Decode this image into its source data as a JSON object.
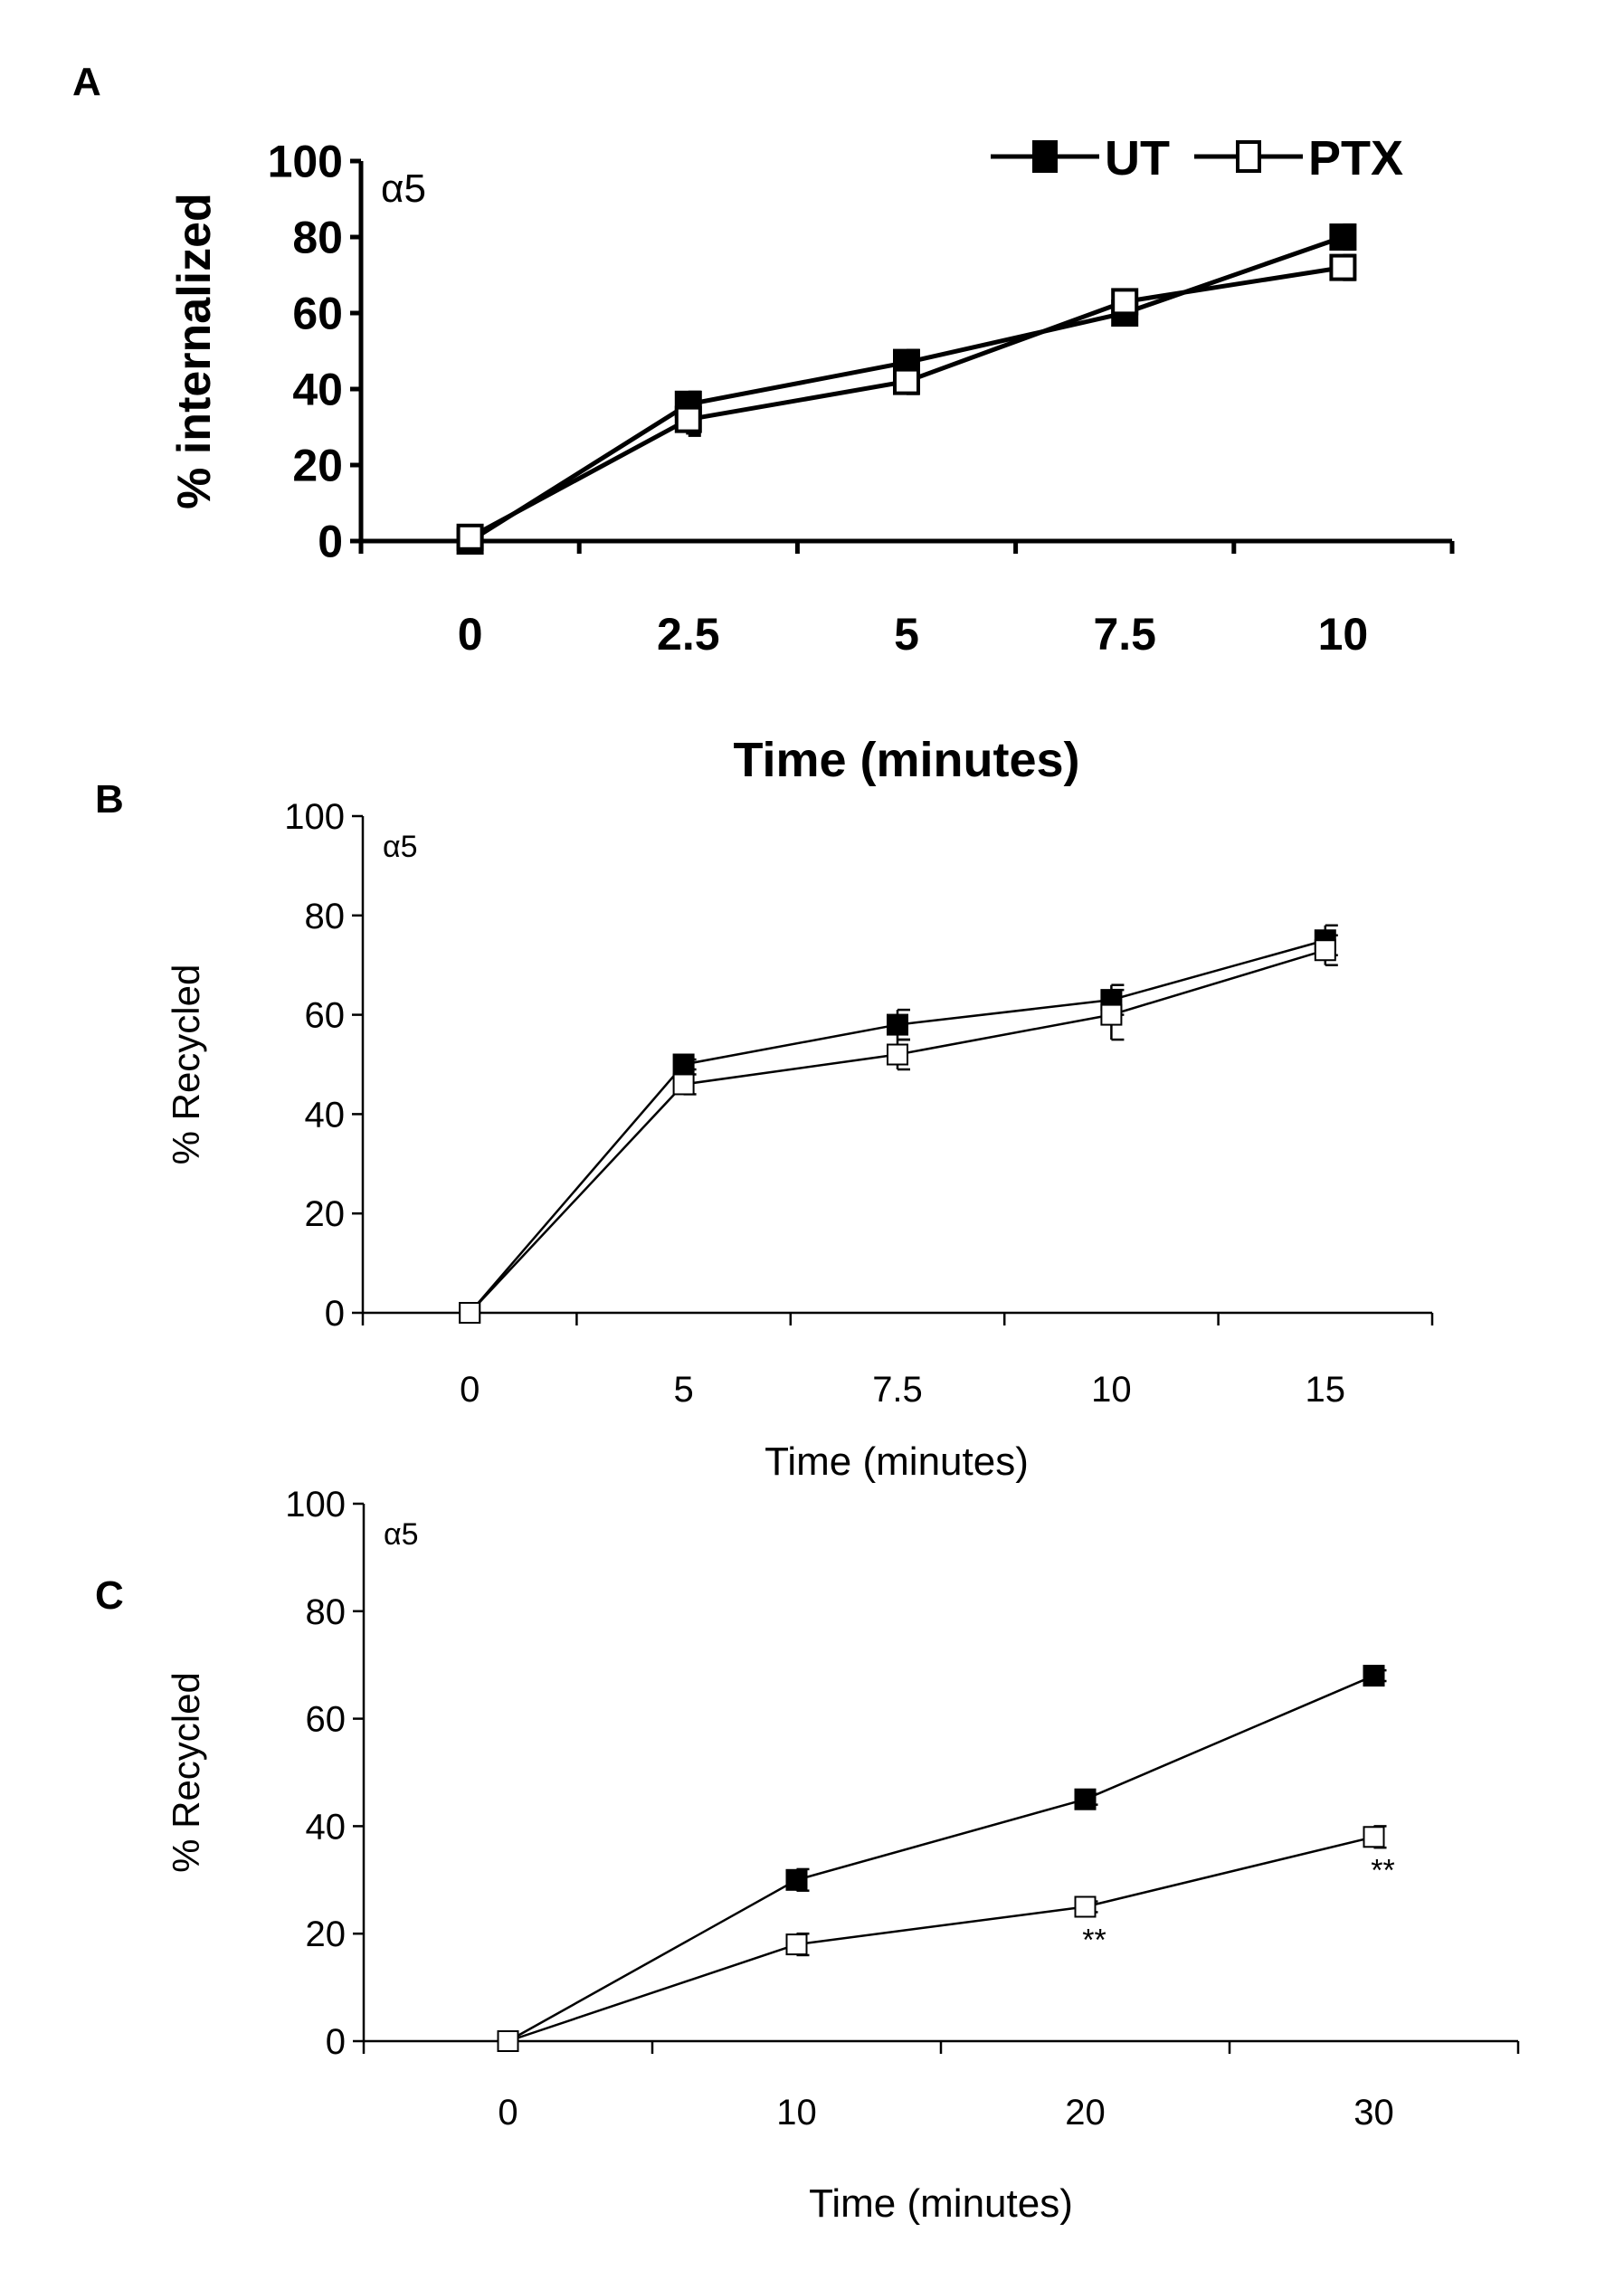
{
  "chart_data": [
    {
      "panel": "A",
      "type": "line",
      "annotation": "α5",
      "categories": [
        "0",
        "2.5",
        "5",
        "7.5",
        "10"
      ],
      "xlabel": "Time (minutes)",
      "ylabel": "% internalized",
      "ylim": [
        0,
        100
      ],
      "yticks": [
        "0",
        "20",
        "40",
        "60",
        "80",
        "100"
      ],
      "legend": {
        "position": "top-right",
        "entries": [
          "UT",
          "PTX"
        ]
      },
      "series": [
        {
          "name": "UT",
          "marker": "filled-square",
          "values": [
            0,
            36,
            47,
            60,
            80
          ],
          "errors": [
            1,
            3,
            3,
            2,
            3
          ]
        },
        {
          "name": "PTX",
          "marker": "open-square",
          "values": [
            1,
            32,
            42,
            63,
            72
          ],
          "errors": [
            1,
            4,
            3,
            2,
            3
          ]
        }
      ]
    },
    {
      "panel": "B",
      "type": "line",
      "annotation": "α5",
      "categories": [
        "0",
        "5",
        "7.5",
        "10",
        "15"
      ],
      "xlabel": "Time (minutes)",
      "ylabel": "% Recycled",
      "ylim": [
        0,
        100
      ],
      "yticks": [
        "0",
        "20",
        "40",
        "60",
        "80",
        "100"
      ],
      "series": [
        {
          "name": "UT",
          "marker": "filled-square",
          "values": [
            0,
            50,
            58,
            63,
            75
          ],
          "errors": [
            0,
            1,
            3,
            3,
            3
          ]
        },
        {
          "name": "PTX",
          "marker": "open-square",
          "values": [
            0,
            46,
            52,
            60,
            73
          ],
          "errors": [
            0,
            2,
            3,
            5,
            3
          ]
        }
      ]
    },
    {
      "panel": "C",
      "type": "line",
      "annotation": "α5",
      "categories": [
        "0",
        "10",
        "20",
        "30"
      ],
      "xlabel": "Time (minutes)",
      "ylabel": "% Recycled",
      "ylim": [
        0,
        100
      ],
      "yticks": [
        "0",
        "20",
        "40",
        "60",
        "80",
        "100"
      ],
      "significance": [
        {
          "series": "PTX",
          "category": "20",
          "label": "**"
        },
        {
          "series": "PTX",
          "category": "30",
          "label": "**"
        }
      ],
      "series": [
        {
          "name": "UT",
          "marker": "filled-square",
          "values": [
            0,
            30,
            45,
            68
          ],
          "errors": [
            0,
            2,
            1,
            1
          ]
        },
        {
          "name": "PTX",
          "marker": "open-square",
          "values": [
            0,
            18,
            25,
            38
          ],
          "errors": [
            0,
            2,
            1,
            2
          ]
        }
      ]
    }
  ]
}
